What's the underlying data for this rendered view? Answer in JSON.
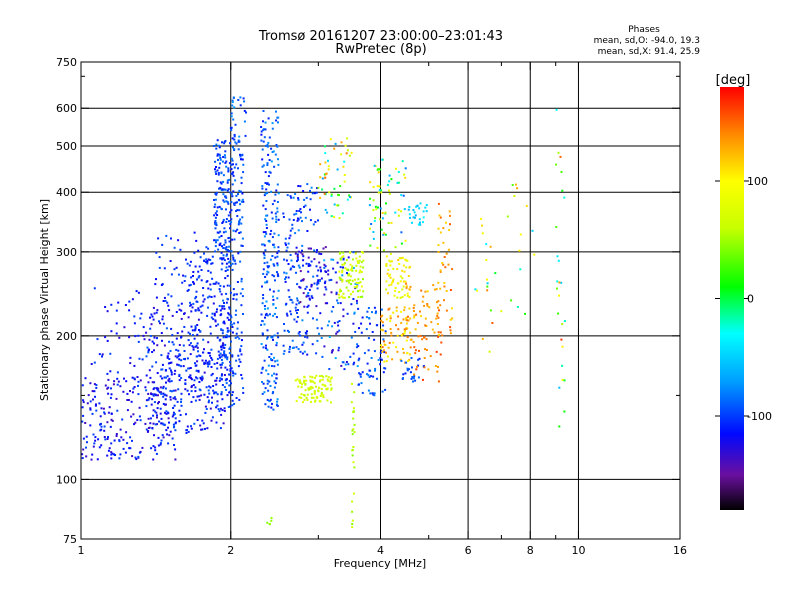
{
  "chart_data": {
    "type": "scatter",
    "title": "Tromsø 20161207 23:00:00–23:01:43",
    "subtitle": "RwPretec (8p)",
    "xlabel": "Frequency [MHz]",
    "ylabel": "Stationary phase Virtual Height [km]",
    "x_scale": "log",
    "y_scale": "log",
    "xlim": [
      1,
      16
    ],
    "ylim": [
      75,
      750
    ],
    "x_ticks": [
      1,
      2,
      4,
      6,
      8,
      10,
      16
    ],
    "x_tick_labels": [
      "1",
      "2",
      "4",
      "6",
      "8",
      "10",
      "16"
    ],
    "x_minor_ticks": [
      3,
      5,
      7,
      9
    ],
    "y_ticks": [
      75,
      100,
      200,
      300,
      400,
      500,
      600,
      750
    ],
    "y_tick_labels": [
      "75",
      "100",
      "200",
      "300",
      "400",
      "500",
      "600",
      "750"
    ],
    "y_minor_ticks": [
      150,
      700
    ],
    "x_grid_lines": [
      2,
      4,
      6,
      8,
      10
    ],
    "y_grid_lines": [
      100,
      200,
      300,
      400,
      500,
      600
    ],
    "stats": {
      "header": "Phases",
      "line1": "mean, sd,O: -94.0, 19.3",
      "line2": "mean, sd,X:  91.4, 25.9"
    },
    "colorbar": {
      "label": "[deg]",
      "range": [
        -180,
        180
      ],
      "ticks": [
        100,
        0,
        -100
      ],
      "tick_labels": [
        "100",
        "0",
        "-100"
      ],
      "stops": [
        {
          "value": -180,
          "color": "#000000"
        },
        {
          "value": -150,
          "color": "#6a0fa0"
        },
        {
          "value": -115,
          "color": "#0008ff"
        },
        {
          "value": -70,
          "color": "#00a0ff"
        },
        {
          "value": -30,
          "color": "#00ffff"
        },
        {
          "value": 10,
          "color": "#00ff00"
        },
        {
          "value": 60,
          "color": "#c8ff00"
        },
        {
          "value": 100,
          "color": "#ffff00"
        },
        {
          "value": 140,
          "color": "#ff8800"
        },
        {
          "value": 180,
          "color": "#ff0000"
        }
      ]
    },
    "clusters": [
      {
        "f": [
          1.0,
          1.55
        ],
        "h": [
          110,
          165
        ],
        "phase": [
          -140,
          -95
        ],
        "n": 230
      },
      {
        "f": [
          1.05,
          1.35
        ],
        "h": [
          165,
          260
        ],
        "phase": [
          -130,
          -95
        ],
        "n": 45
      },
      {
        "f": [
          1.35,
          1.95
        ],
        "h": [
          125,
          230
        ],
        "phase": [
          -135,
          -90
        ],
        "n": 320
      },
      {
        "f": [
          1.4,
          1.85
        ],
        "h": [
          230,
          330
        ],
        "phase": [
          -120,
          -90
        ],
        "n": 70
      },
      {
        "f": [
          1.6,
          2.0
        ],
        "h": [
          150,
          300
        ],
        "phase": [
          -125,
          -90
        ],
        "n": 160
      },
      {
        "f": [
          1.85,
          2.12
        ],
        "h": [
          300,
          520
        ],
        "phase": [
          -115,
          -80
        ],
        "n": 220
      },
      {
        "f": [
          1.9,
          2.12
        ],
        "h": [
          140,
          300
        ],
        "phase": [
          -115,
          -85
        ],
        "n": 130
      },
      {
        "f": [
          2.0,
          2.15
        ],
        "h": [
          520,
          640
        ],
        "phase": [
          -110,
          -70
        ],
        "n": 25
      },
      {
        "f": [
          2.3,
          2.5
        ],
        "h": [
          140,
          600
        ],
        "phase": [
          -115,
          -70
        ],
        "n": 240
      },
      {
        "f": [
          2.55,
          3.0
        ],
        "h": [
          180,
          420
        ],
        "phase": [
          -120,
          -75
        ],
        "n": 160
      },
      {
        "f": [
          2.7,
          3.2
        ],
        "h": [
          230,
          310
        ],
        "phase": [
          -160,
          -100
        ],
        "n": 60
      },
      {
        "f": [
          2.7,
          3.2
        ],
        "h": [
          145,
          165
        ],
        "phase": [
          55,
          80
        ],
        "n": 95
      },
      {
        "f": [
          3.0,
          3.5
        ],
        "h": [
          350,
          520
        ],
        "phase": [
          -80,
          150
        ],
        "n": 55
      },
      {
        "f": [
          3.0,
          3.6
        ],
        "h": [
          170,
          300
        ],
        "phase": [
          -140,
          -60
        ],
        "n": 90
      },
      {
        "f": [
          3.3,
          3.7
        ],
        "h": [
          240,
          300
        ],
        "phase": [
          40,
          90
        ],
        "n": 90
      },
      {
        "f": [
          3.6,
          4.1
        ],
        "h": [
          150,
          230
        ],
        "phase": [
          -115,
          -75
        ],
        "n": 70
      },
      {
        "f": [
          3.8,
          4.5
        ],
        "h": [
          300,
          470
        ],
        "phase": [
          -90,
          120
        ],
        "n": 70
      },
      {
        "f": [
          4.0,
          4.6
        ],
        "h": [
          175,
          230
        ],
        "phase": [
          90,
          150
        ],
        "n": 70
      },
      {
        "f": [
          4.1,
          4.6
        ],
        "h": [
          240,
          300
        ],
        "phase": [
          70,
          120
        ],
        "n": 60
      },
      {
        "f": [
          4.4,
          4.9
        ],
        "h": [
          160,
          180
        ],
        "phase": [
          -110,
          -85
        ],
        "n": 25
      },
      {
        "f": [
          4.5,
          5.0
        ],
        "h": [
          340,
          380
        ],
        "phase": [
          -70,
          -30
        ],
        "n": 25
      },
      {
        "f": [
          4.5,
          5.3
        ],
        "h": [
          195,
          260
        ],
        "phase": [
          110,
          150
        ],
        "n": 60
      },
      {
        "f": [
          4.6,
          5.3
        ],
        "h": [
          160,
          200
        ],
        "phase": [
          125,
          165
        ],
        "n": 25
      },
      {
        "f": [
          5.2,
          5.6
        ],
        "h": [
          200,
          400
        ],
        "phase": [
          110,
          160
        ],
        "n": 40
      },
      {
        "f": [
          3.5,
          3.55
        ],
        "h": [
          75,
          160
        ],
        "phase": [
          40,
          70
        ],
        "n": 25
      },
      {
        "f": [
          6.2,
          7.0
        ],
        "h": [
          180,
          360
        ],
        "phase": [
          -90,
          160
        ],
        "n": 18
      },
      {
        "f": [
          7.2,
          8.2
        ],
        "h": [
          190,
          430
        ],
        "phase": [
          -60,
          160
        ],
        "n": 14
      },
      {
        "f": [
          9.0,
          9.4
        ],
        "h": [
          110,
          610
        ],
        "phase": [
          -60,
          170
        ],
        "n": 26
      },
      {
        "f": [
          2.35,
          2.45
        ],
        "h": [
          80,
          84
        ],
        "phase": [
          40,
          60
        ],
        "n": 5
      }
    ]
  }
}
